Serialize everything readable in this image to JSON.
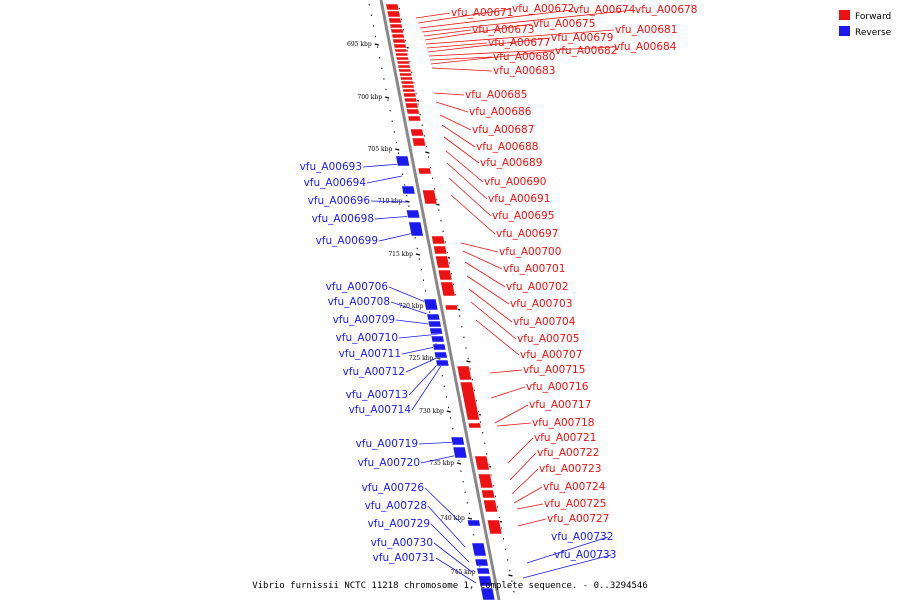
{
  "colors": {
    "forward": "#ee1111",
    "reverse": "#1a1af0",
    "backbone": "#888888"
  },
  "legend": {
    "forward": "Forward",
    "reverse": "Reverse"
  },
  "caption": "Vibrio furnissii NCTC 11218 chromosome 1, complete sequence. - 0..3294546",
  "ticks": [
    "695 kbp",
    "700 kbp",
    "705 kbp",
    "710 kbp",
    "715 kbp",
    "720 kbp",
    "725 kbp",
    "730 kbp",
    "735 kbp",
    "740 kbp",
    "745 kbp"
  ],
  "forward_genes": [
    "vfu_A00671",
    "vfu_A00672",
    "vfu_A00674",
    "vfu_A00678",
    "vfu_A00673",
    "vfu_A00675",
    "vfu_A00681",
    "vfu_A00677",
    "vfu_A00679",
    "vfu_A00684",
    "vfu_A00680",
    "vfu_A00682",
    "vfu_A00683",
    "vfu_A00685",
    "vfu_A00686",
    "vfu_A00687",
    "vfu_A00688",
    "vfu_A00689",
    "vfu_A00690",
    "vfu_A00691",
    "vfu_A00695",
    "vfu_A00697",
    "vfu_A00700",
    "vfu_A00701",
    "vfu_A00702",
    "vfu_A00703",
    "vfu_A00704",
    "vfu_A00705",
    "vfu_A00707",
    "vfu_A00715",
    "vfu_A00716",
    "vfu_A00717",
    "vfu_A00718",
    "vfu_A00721",
    "vfu_A00722",
    "vfu_A00723",
    "vfu_A00724",
    "vfu_A00725",
    "vfu_A00727"
  ],
  "reverse_genes": [
    "vfu_A00693",
    "vfu_A00694",
    "vfu_A00696",
    "vfu_A00698",
    "vfu_A00699",
    "vfu_A00706",
    "vfu_A00708",
    "vfu_A00709",
    "vfu_A00710",
    "vfu_A00711",
    "vfu_A00712",
    "vfu_A00713",
    "vfu_A00714",
    "vfu_A00719",
    "vfu_A00720",
    "vfu_A00726",
    "vfu_A00728",
    "vfu_A00729",
    "vfu_A00730",
    "vfu_A00731",
    "vfu_A00732",
    "vfu_A00733"
  ]
}
